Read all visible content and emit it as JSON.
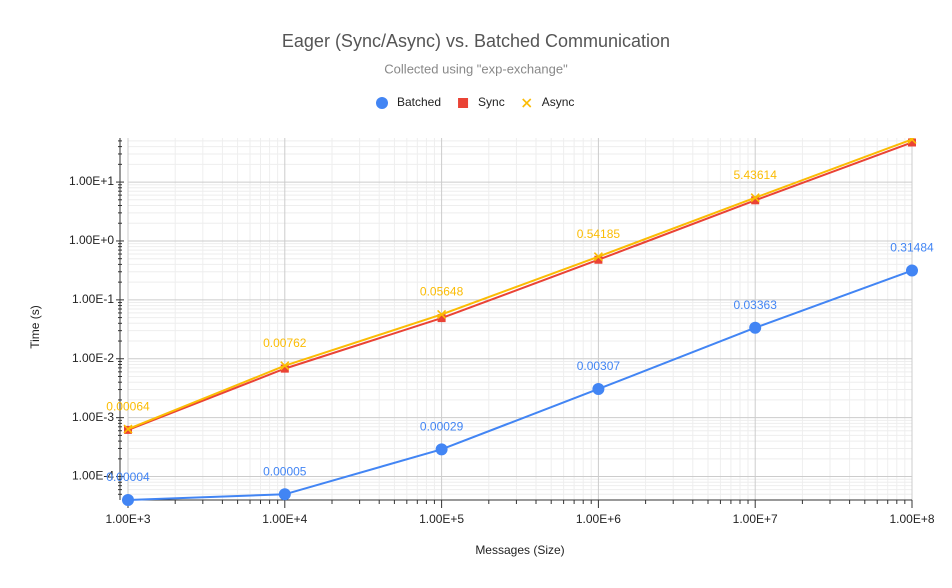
{
  "chart_data": {
    "type": "line",
    "title": "Eager (Sync/Async) vs. Batched Communication",
    "subtitle": "Collected using \"exp-exchange\"",
    "x_label": "Messages (Size)",
    "y_label": "Time (s)",
    "x": [
      1000,
      10000,
      100000,
      1000000,
      10000000,
      100000000
    ],
    "x_scale": "log",
    "y_scale": "log",
    "grid": true,
    "legend": "top",
    "xlim": [
      1000,
      100000000
    ],
    "ylim": [
      4e-05,
      56
    ],
    "xticks": [
      {
        "value": 1000,
        "label": "1.00E+3"
      },
      {
        "value": 10000,
        "label": "1.00E+4"
      },
      {
        "value": 100000,
        "label": "1.00E+5"
      },
      {
        "value": 1000000,
        "label": "1.00E+6"
      },
      {
        "value": 10000000,
        "label": "1.00E+7"
      },
      {
        "value": 100000000,
        "label": "1.00E+8"
      }
    ],
    "yticks": [
      {
        "value": 0.0001,
        "label": "1.00E-4"
      },
      {
        "value": 0.001,
        "label": "1.00E-3"
      },
      {
        "value": 0.01,
        "label": "1.00E-2"
      },
      {
        "value": 0.1,
        "label": "1.00E-1"
      },
      {
        "value": 1,
        "label": "1.00E+0"
      },
      {
        "value": 10,
        "label": "1.00E+1"
      }
    ],
    "series": [
      {
        "name": "Batched",
        "color": "#4285f4",
        "marker": "circle",
        "values": [
          4e-05,
          5e-05,
          0.00029,
          0.00307,
          0.03363,
          0.31484
        ],
        "value_labels": [
          "0.00004",
          "0.00005",
          "0.00029",
          "0.00307",
          "0.03363",
          "0.31484"
        ]
      },
      {
        "name": "Sync",
        "color": "#ea4335",
        "marker": "square",
        "values": [
          0.00062,
          0.0068,
          0.049,
          0.48,
          4.9,
          47
        ]
      },
      {
        "name": "Async",
        "color": "#fbbc04",
        "marker": "cross",
        "values": [
          0.00064,
          0.00762,
          0.05648,
          0.54185,
          5.43614,
          53
        ],
        "value_labels": [
          "0.00064",
          "0.00762",
          "0.05648",
          "0.54185",
          "5.43614",
          null
        ]
      }
    ]
  }
}
